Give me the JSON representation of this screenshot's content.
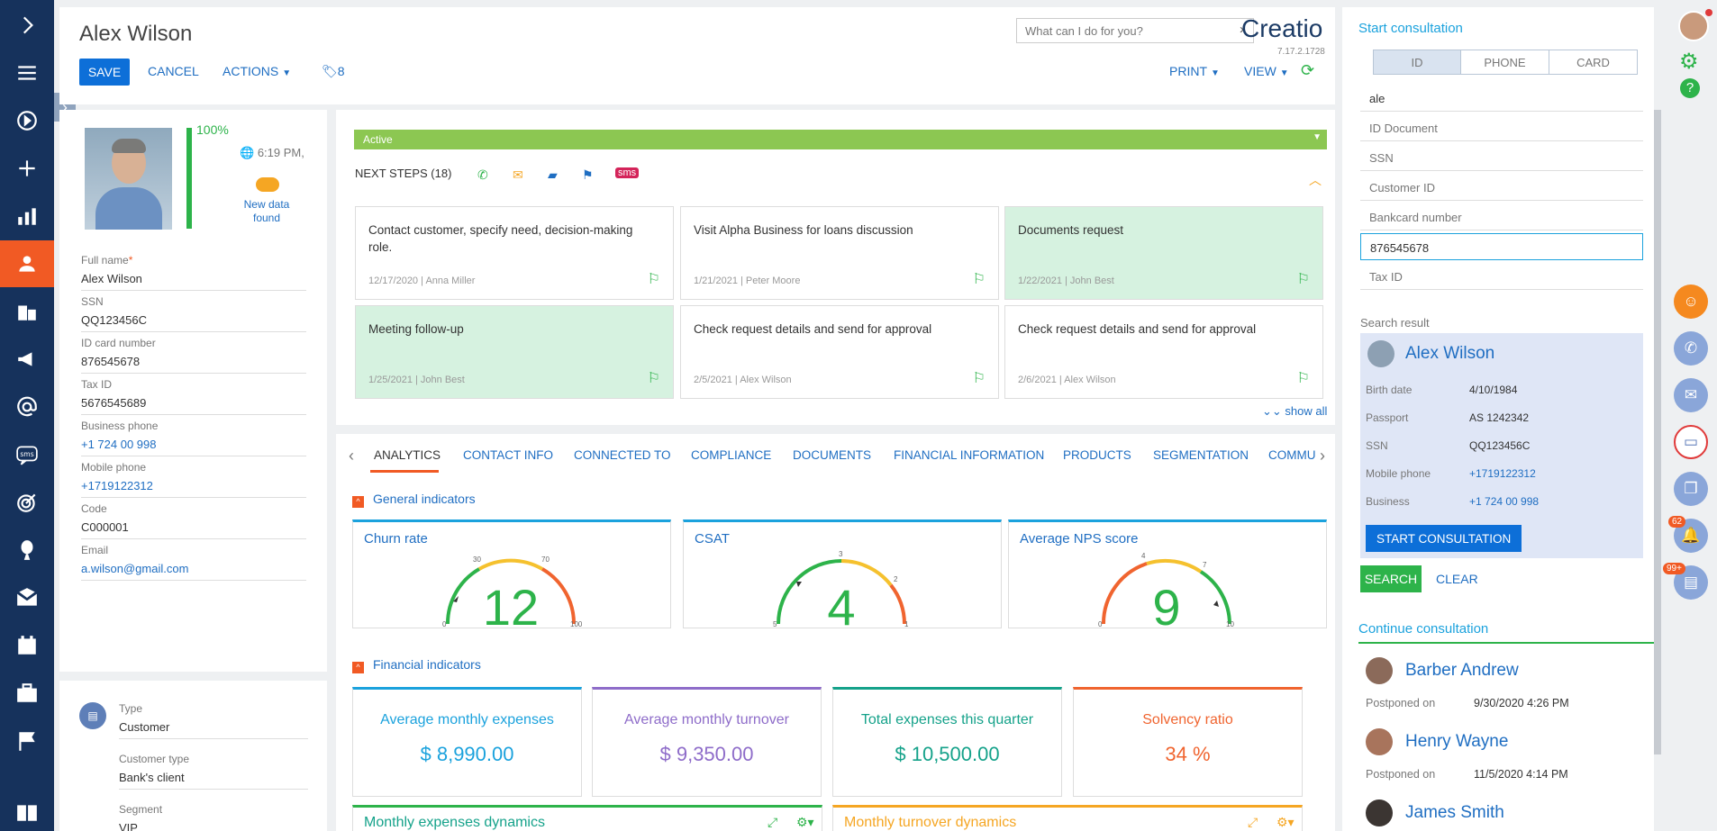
{
  "header": {
    "title": "Alex Wilson",
    "save": "SAVE",
    "cancel": "CANCEL",
    "actions": "ACTIONS",
    "tag_count": "8",
    "print": "PRINT",
    "view": "VIEW",
    "search_placeholder": "What can I do for you?",
    "logo": "Creatio",
    "version": "7.17.2.1728"
  },
  "profile": {
    "completeness": "100%",
    "time": "6:19 PM,",
    "new_data": "New data found",
    "fields": [
      {
        "label": "Full name",
        "value": "Alex Wilson",
        "required": "*"
      },
      {
        "label": "SSN",
        "value": "QQ123456C"
      },
      {
        "label": "ID card number",
        "value": "876545678"
      },
      {
        "label": "Tax ID",
        "value": "5676545689"
      },
      {
        "label": "Business phone",
        "value": "+1 724 00 998"
      },
      {
        "label": "Mobile phone",
        "value": "+1719122312"
      },
      {
        "label": "Code",
        "value": "C000001"
      },
      {
        "label": "Email",
        "value": "a.wilson@gmail.com"
      }
    ],
    "type_fields": [
      {
        "label": "Type",
        "value": "Customer"
      },
      {
        "label": "Customer type",
        "value": "Bank's client"
      },
      {
        "label": "Segment",
        "value": "VIP"
      }
    ]
  },
  "status": "Active",
  "next_steps": {
    "label": "NEXT STEPS (18)",
    "show_all": "show all",
    "cards": [
      {
        "title": "Contact customer, specify need, decision-making role.",
        "date": "12/17/2020",
        "owner": "Anna Miller"
      },
      {
        "title": "Visit Alpha Business for loans discussion",
        "date": "1/21/2021",
        "owner": "Peter Moore"
      },
      {
        "title": "Documents request",
        "date": "1/22/2021",
        "owner": "John Best"
      },
      {
        "title": "Meeting follow-up",
        "date": "1/25/2021",
        "owner": "John Best"
      },
      {
        "title": "Check request details and send for approval",
        "date": "2/5/2021",
        "owner": "Alex Wilson"
      },
      {
        "title": "Check request details and send for approval",
        "date": "2/6/2021",
        "owner": "Alex Wilson"
      }
    ]
  },
  "tabs": [
    "ANALYTICS",
    "CONTACT INFO",
    "CONNECTED TO",
    "COMPLIANCE",
    "DOCUMENTS",
    "FINANCIAL INFORMATION",
    "PRODUCTS",
    "SEGMENTATION",
    "COMMU"
  ],
  "analytics": {
    "general_header": "General indicators",
    "financial_header": "Financial indicators",
    "gauges": [
      {
        "title": "Churn rate",
        "value": "12",
        "min": "0",
        "max": "100",
        "t1": "30",
        "t2": "70"
      },
      {
        "title": "CSAT",
        "value": "4",
        "min": "5",
        "max": "1",
        "t1": "3",
        "t2": "2"
      },
      {
        "title": "Average NPS score",
        "value": "9",
        "min": "0",
        "max": "10",
        "t1": "4",
        "t2": "7"
      }
    ],
    "financial": [
      {
        "title": "Average monthly expenses",
        "value": "$ 8,990.00",
        "color": "#1ba2dd"
      },
      {
        "title": "Average monthly turnover",
        "value": "$ 9,350.00",
        "color": "#8e6cc9"
      },
      {
        "title": "Total expenses this quarter",
        "value": "$ 10,500.00",
        "color": "#15a28a"
      },
      {
        "title": "Solvency ratio",
        "value": "34 %",
        "color": "#f0642f"
      }
    ],
    "dynamics": [
      {
        "title": "Monthly expenses dynamics",
        "color": "#15a28a"
      },
      {
        "title": "Monthly turnover dynamics",
        "color": "#f5a623"
      }
    ]
  },
  "consultation": {
    "title": "Start consultation",
    "modes": [
      "ID",
      "PHONE",
      "CARD"
    ],
    "fields": [
      {
        "value": "ale"
      },
      {
        "placeholder": "ID Document"
      },
      {
        "placeholder": "SSN"
      },
      {
        "placeholder": "Customer ID"
      },
      {
        "placeholder": "Bankcard number"
      },
      {
        "value": "876545678"
      },
      {
        "placeholder": "Tax ID"
      }
    ],
    "search_result_label": "Search result",
    "result": {
      "name": "Alex Wilson",
      "rows": [
        {
          "k": "Birth date",
          "v": "4/10/1984"
        },
        {
          "k": "Passport",
          "v": "AS 1242342"
        },
        {
          "k": "SSN",
          "v": "QQ123456C"
        },
        {
          "k": "Mobile phone",
          "v": "+1719122312"
        },
        {
          "k": "Business",
          "v": "+1 724 00 998"
        }
      ],
      "start_btn": "START CONSULTATION"
    },
    "search_btn": "SEARCH",
    "clear_btn": "CLEAR",
    "continue_title": "Continue consultation",
    "continue_items": [
      {
        "name": "Barber Andrew",
        "label": "Postponed on",
        "value": "9/30/2020 4:26 PM"
      },
      {
        "name": "Henry Wayne",
        "label": "Postponed on",
        "value": "11/5/2020 4:14 PM"
      },
      {
        "name": "James Smith"
      }
    ]
  },
  "comm": {
    "notifications_badge": "62",
    "tasks_badge": "99+"
  },
  "colors": {
    "nav_bg": "#16325c",
    "accent": "#f15a24",
    "primary": "#0d6fd8",
    "success": "#2db34a"
  }
}
